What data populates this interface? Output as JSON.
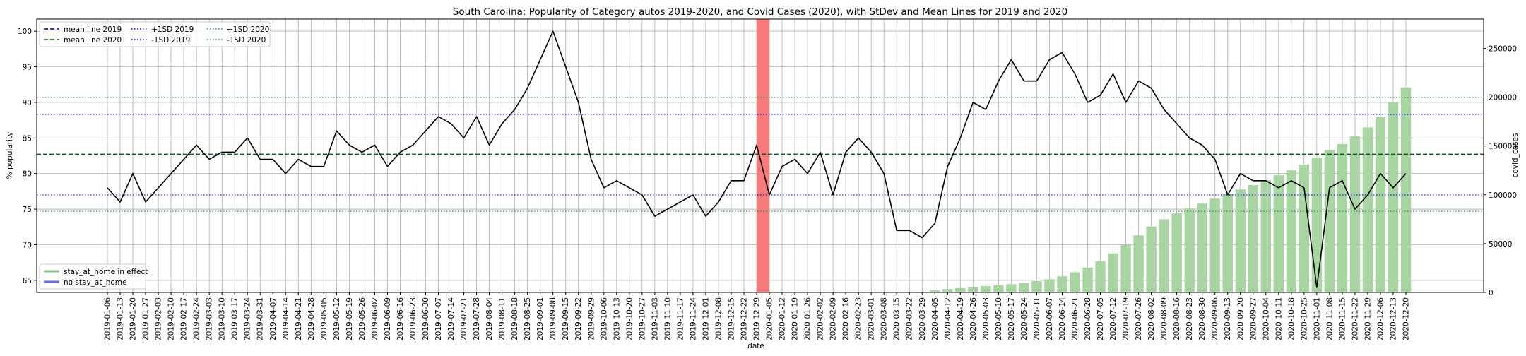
{
  "chart_data": {
    "type": "line",
    "title": "South Carolina: Popularity of Category autos 2019-2020, and Covid Cases (2020), with StDev and Mean Lines for 2019 and 2020",
    "xlabel": "date",
    "ylabel": "% popularity",
    "ylabel_right": "covid_cases",
    "ylim": [
      63.3,
      101.7
    ],
    "ylim_right": [
      0,
      280000
    ],
    "yticks": [
      65,
      70,
      75,
      80,
      85,
      90,
      95,
      100
    ],
    "yticks_right": [
      0,
      50000,
      100000,
      150000,
      200000,
      250000
    ],
    "grid": true,
    "legend_placement": "top-left",
    "dates": [
      "2019-01-06",
      "2019-01-13",
      "2019-01-20",
      "2019-01-27",
      "2019-02-03",
      "2019-02-10",
      "2019-02-17",
      "2019-02-24",
      "2019-03-03",
      "2019-03-10",
      "2019-03-17",
      "2019-03-24",
      "2019-03-31",
      "2019-04-07",
      "2019-04-14",
      "2019-04-21",
      "2019-04-28",
      "2019-05-05",
      "2019-05-12",
      "2019-05-19",
      "2019-05-26",
      "2019-06-02",
      "2019-06-09",
      "2019-06-16",
      "2019-06-23",
      "2019-06-30",
      "2019-07-07",
      "2019-07-14",
      "2019-07-21",
      "2019-07-28",
      "2019-08-04",
      "2019-08-11",
      "2019-08-18",
      "2019-08-25",
      "2019-09-01",
      "2019-09-08",
      "2019-09-15",
      "2019-09-22",
      "2019-09-29",
      "2019-10-06",
      "2019-10-13",
      "2019-10-20",
      "2019-10-27",
      "2019-11-03",
      "2019-11-10",
      "2019-11-17",
      "2019-11-24",
      "2019-12-01",
      "2019-12-08",
      "2019-12-15",
      "2019-12-22",
      "2019-12-29",
      "2020-01-05",
      "2020-01-12",
      "2020-01-19",
      "2020-01-26",
      "2020-02-02",
      "2020-02-09",
      "2020-02-16",
      "2020-02-23",
      "2020-03-01",
      "2020-03-08",
      "2020-03-15",
      "2020-03-22",
      "2020-03-29",
      "2020-04-05",
      "2020-04-12",
      "2020-04-19",
      "2020-04-26",
      "2020-05-03",
      "2020-05-10",
      "2020-05-17",
      "2020-05-24",
      "2020-05-31",
      "2020-06-07",
      "2020-06-14",
      "2020-06-21",
      "2020-06-28",
      "2020-07-05",
      "2020-07-12",
      "2020-07-19",
      "2020-07-26",
      "2020-08-02",
      "2020-08-09",
      "2020-08-16",
      "2020-08-23",
      "2020-08-30",
      "2020-09-06",
      "2020-09-13",
      "2020-09-20",
      "2020-09-27",
      "2020-10-04",
      "2020-10-11",
      "2020-10-18",
      "2020-10-25",
      "2020-11-01",
      "2020-11-08",
      "2020-11-15",
      "2020-11-22",
      "2020-11-29",
      "2020-12-06",
      "2020-12-13",
      "2020-12-20"
    ],
    "tick_labels": [
      "2019-01-06",
      "2019-01-13",
      "2019-01-20",
      "2019-01-27",
      "2019-02-03",
      "2019-02-10",
      "2019-02-17",
      "2019-02-24",
      "2019-03-03",
      "2019-03-10",
      "2019-03-17",
      "2019-03-24",
      "2019-03-31",
      "2019-04-07",
      "2019-04-14",
      "2019-04-21",
      "2019-04-28",
      "2019-05-05",
      "2019-05-12",
      "2019-05-19",
      "2019-05-26",
      "2019-06-02",
      "2019-06-09",
      "2019-06-16",
      "2019-06-23",
      "2019-06-30",
      "2019-07-07",
      "2019-07-14",
      "2019-07-21",
      "2019-07-28",
      "2019-08-04",
      "2019-08-11",
      "2019-08-18",
      "2019-08-25",
      "2019-09-01",
      "2019-09-08",
      "2019-09-15",
      "2019-09-22",
      "2019-09-29",
      "2019-10-06",
      "2019-10-13",
      "2019-10-20",
      "2019-10-27",
      "2019-11-03",
      "2019-11-10",
      "2019-11-17",
      "2019-11-24",
      "2019-12-01",
      "2019-12-08",
      "2019-12-15",
      "2019-12-22",
      "2019-12-29",
      "2020-01-05",
      "2020-01-12",
      "2020-01-19",
      "2020-01-26",
      "2020-02-02",
      "2020-02-09",
      "2020-02-16",
      "2020-02-23",
      "2020-03-01",
      "2020-03-08",
      "2020-03-15",
      "2020-03-22",
      "2020-03-29",
      "2020-04-05",
      "2020-04-12",
      "2020-04-19",
      "2020-04-26",
      "2020-05-03",
      "2020-05-10",
      "2020-05-17",
      "2020-05-24",
      "2020-05-31",
      "2020-06-07",
      "2020-06-14",
      "2020-06-21",
      "2020-06-28",
      "2020-07-05",
      "2020-07-12",
      "2020-07-19",
      "2020-07-26",
      "2020-08-02",
      "2020-08-09",
      "2020-08-16",
      "2020-08-23",
      "2020-08-30",
      "2020-09-06",
      "2020-09-13",
      "2020-09-20",
      "2020-09-27",
      "2020-10-04",
      "2020-10-11",
      "2020-10-18",
      "2020-10-25",
      "2020-11-01",
      "2020-11-08",
      "2020-11-15",
      "2020-11-22",
      "2020-11-29",
      "2020-12-06",
      "2020-12-13",
      "2020-12-20"
    ],
    "popularity": [
      78,
      76,
      80,
      76,
      78,
      80,
      82,
      84,
      82,
      83,
      83,
      85,
      82,
      82,
      80,
      82,
      81,
      81,
      86,
      84,
      83,
      84,
      81,
      83,
      84,
      86,
      88,
      87,
      85,
      88,
      84,
      87,
      89,
      92,
      96,
      100,
      95,
      90,
      82,
      78,
      79,
      78,
      77,
      74,
      75,
      76,
      77,
      74,
      76,
      79,
      79,
      84,
      77,
      81,
      82,
      80,
      83,
      77,
      83,
      85,
      83,
      80,
      72,
      72,
      71,
      73,
      81,
      85,
      90,
      89,
      93,
      96,
      93,
      93,
      96,
      97,
      94,
      90,
      91,
      94,
      90,
      93,
      92,
      89,
      87,
      85,
      84,
      82,
      77,
      80,
      79,
      79,
      78,
      79,
      78,
      64,
      78,
      79,
      75,
      77,
      80,
      78,
      80
    ],
    "covid_cases": [
      null,
      null,
      null,
      null,
      null,
      null,
      null,
      null,
      null,
      null,
      null,
      null,
      null,
      null,
      null,
      null,
      null,
      null,
      null,
      null,
      null,
      null,
      null,
      null,
      null,
      null,
      null,
      null,
      null,
      null,
      null,
      null,
      null,
      null,
      null,
      null,
      null,
      null,
      null,
      null,
      null,
      null,
      null,
      null,
      null,
      null,
      null,
      null,
      null,
      null,
      null,
      null,
      null,
      null,
      null,
      null,
      null,
      null,
      null,
      null,
      null,
      null,
      null,
      null,
      500,
      2000,
      3500,
      4500,
      5500,
      6500,
      7500,
      8500,
      10000,
      11500,
      13500,
      16500,
      20500,
      25500,
      32000,
      40000,
      49000,
      58500,
      67500,
      75000,
      81000,
      86000,
      91000,
      96000,
      101000,
      105500,
      110000,
      115000,
      120000,
      125000,
      131000,
      138000,
      146000,
      152000,
      160000,
      169000,
      180000,
      195000,
      210000
    ],
    "mean_2019": 82.7,
    "mean_2020": 82.7,
    "plus1sd_2019": 88.3,
    "minus1sd_2019": 77.0,
    "plus1sd_2020": 90.7,
    "minus1sd_2020": 74.7,
    "highlight_span": [
      "2019-12-29",
      "2020-01-05"
    ],
    "legend": {
      "lines": [
        {
          "label": "mean line 2019",
          "color": "#00008b",
          "dash": "6,3"
        },
        {
          "label": "mean line 2020",
          "color": "#006400",
          "dash": "6,3"
        },
        {
          "label": "+1SD 2019",
          "color": "#0000ff",
          "dash": "1.5,2.5"
        },
        {
          "label": "-1SD 2019",
          "color": "#0000ff",
          "dash": "1.5,2.5"
        },
        {
          "label": "+1SD 2020",
          "color": "#2e8b57",
          "dash": "1.5,2.5"
        },
        {
          "label": "-1SD 2020",
          "color": "#2e8b57",
          "dash": "1.5,2.5"
        }
      ],
      "patches": [
        {
          "label": "stay_at_home in effect",
          "color": "#88c488"
        },
        {
          "label": "no stay_at_home",
          "color": "#6b6bdd"
        }
      ]
    },
    "colors": {
      "popularity_line": "#000000",
      "covid_bars": "#a9d5a3",
      "highlight": "#f77a7a",
      "grid": "#b0b0b0"
    }
  }
}
